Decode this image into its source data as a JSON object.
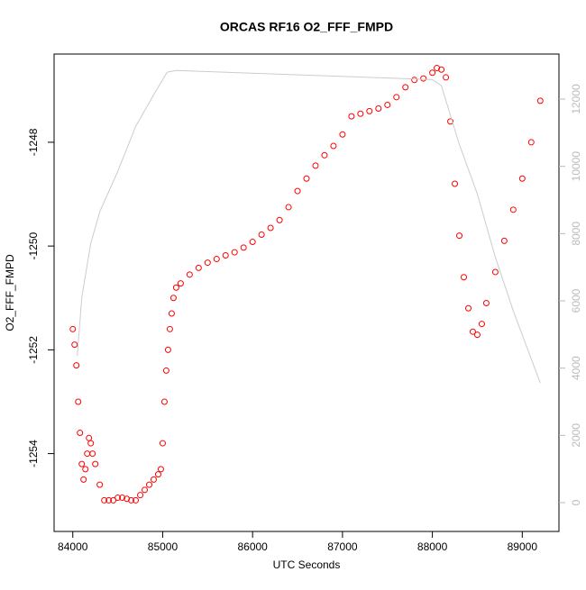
{
  "chart_data": {
    "type": "scatter",
    "title": "ORCAS RF16 O2_FFF_FMPD",
    "x_label": "UTC Seconds",
    "y_label": "O2_FFF_FMPD",
    "xlim": [
      83792,
      89408
    ],
    "xticks": [
      84000,
      85000,
      86000,
      87000,
      88000,
      89000
    ],
    "ylim": [
      -1255.5,
      -1246.3
    ],
    "yticks": [
      -1254,
      -1252,
      -1250,
      -1248
    ],
    "y2lim": [
      -857,
      13339
    ],
    "y2ticks": [
      0,
      2000,
      4000,
      6000,
      8000,
      10000,
      12000
    ],
    "series": [
      {
        "color": "#ff0000",
        "x": [
          84000,
          84020,
          84040,
          84060,
          84080,
          84100,
          84120,
          84140,
          84160,
          84180,
          84200,
          84220,
          84250,
          84300,
          84350,
          84400,
          84450,
          84500,
          84550,
          84600,
          84650,
          84700,
          84750,
          84800,
          84850,
          84900,
          84950,
          84980,
          85000,
          85020,
          85040,
          85060,
          85080,
          85100,
          85120,
          85150,
          85200,
          85300,
          85400,
          85500,
          85600,
          85700,
          85800,
          85900,
          86000,
          86100,
          86200,
          86300,
          86400,
          86500,
          86600,
          86700,
          86800,
          86900,
          87000,
          87100,
          87200,
          87300,
          87400,
          87500,
          87600,
          87700,
          87800,
          87900,
          88000,
          88050,
          88100,
          88150,
          88200,
          88250,
          88300,
          88350,
          88400,
          88450,
          88500,
          88550,
          88600,
          88700,
          88800,
          88900,
          89000,
          89100,
          89200
        ],
        "values": [
          -1251.6,
          -1251.9,
          -1252.3,
          -1253.0,
          -1253.6,
          -1254.2,
          -1254.5,
          -1254.3,
          -1254.0,
          -1253.7,
          -1253.8,
          -1254.0,
          -1254.2,
          -1254.6,
          -1254.9,
          -1254.9,
          -1254.9,
          -1254.85,
          -1254.85,
          -1254.87,
          -1254.9,
          -1254.9,
          -1254.8,
          -1254.7,
          -1254.6,
          -1254.5,
          -1254.4,
          -1254.3,
          -1253.8,
          -1253.0,
          -1252.4,
          -1252.0,
          -1251.6,
          -1251.3,
          -1251.0,
          -1250.8,
          -1250.72,
          -1250.55,
          -1250.42,
          -1250.32,
          -1250.25,
          -1250.18,
          -1250.12,
          -1250.03,
          -1249.92,
          -1249.78,
          -1249.65,
          -1249.5,
          -1249.25,
          -1248.94,
          -1248.7,
          -1248.45,
          -1248.25,
          -1248.07,
          -1247.85,
          -1247.5,
          -1247.45,
          -1247.4,
          -1247.35,
          -1247.28,
          -1247.13,
          -1246.94,
          -1246.8,
          -1246.77,
          -1246.66,
          -1246.57,
          -1246.6,
          -1246.75,
          -1247.6,
          -1248.8,
          -1249.8,
          -1250.6,
          -1251.2,
          -1251.65,
          -1251.71,
          -1251.5,
          -1251.1,
          -1250.5,
          -1249.9,
          -1249.3,
          -1248.7,
          -1248.0,
          -1247.2
        ]
      },
      {
        "color": "#cccccc",
        "axis": "y2",
        "x": [
          84050,
          84100,
          84200,
          84300,
          84500,
          84700,
          84900,
          85050,
          85150,
          88000,
          88100,
          88300,
          88500,
          88700,
          88900,
          89200
        ],
        "values": [
          4364,
          6100,
          7710,
          8650,
          9850,
          11190,
          12130,
          12800,
          12850,
          12580,
          12400,
          10650,
          9180,
          7300,
          5700,
          3560
        ]
      }
    ]
  }
}
